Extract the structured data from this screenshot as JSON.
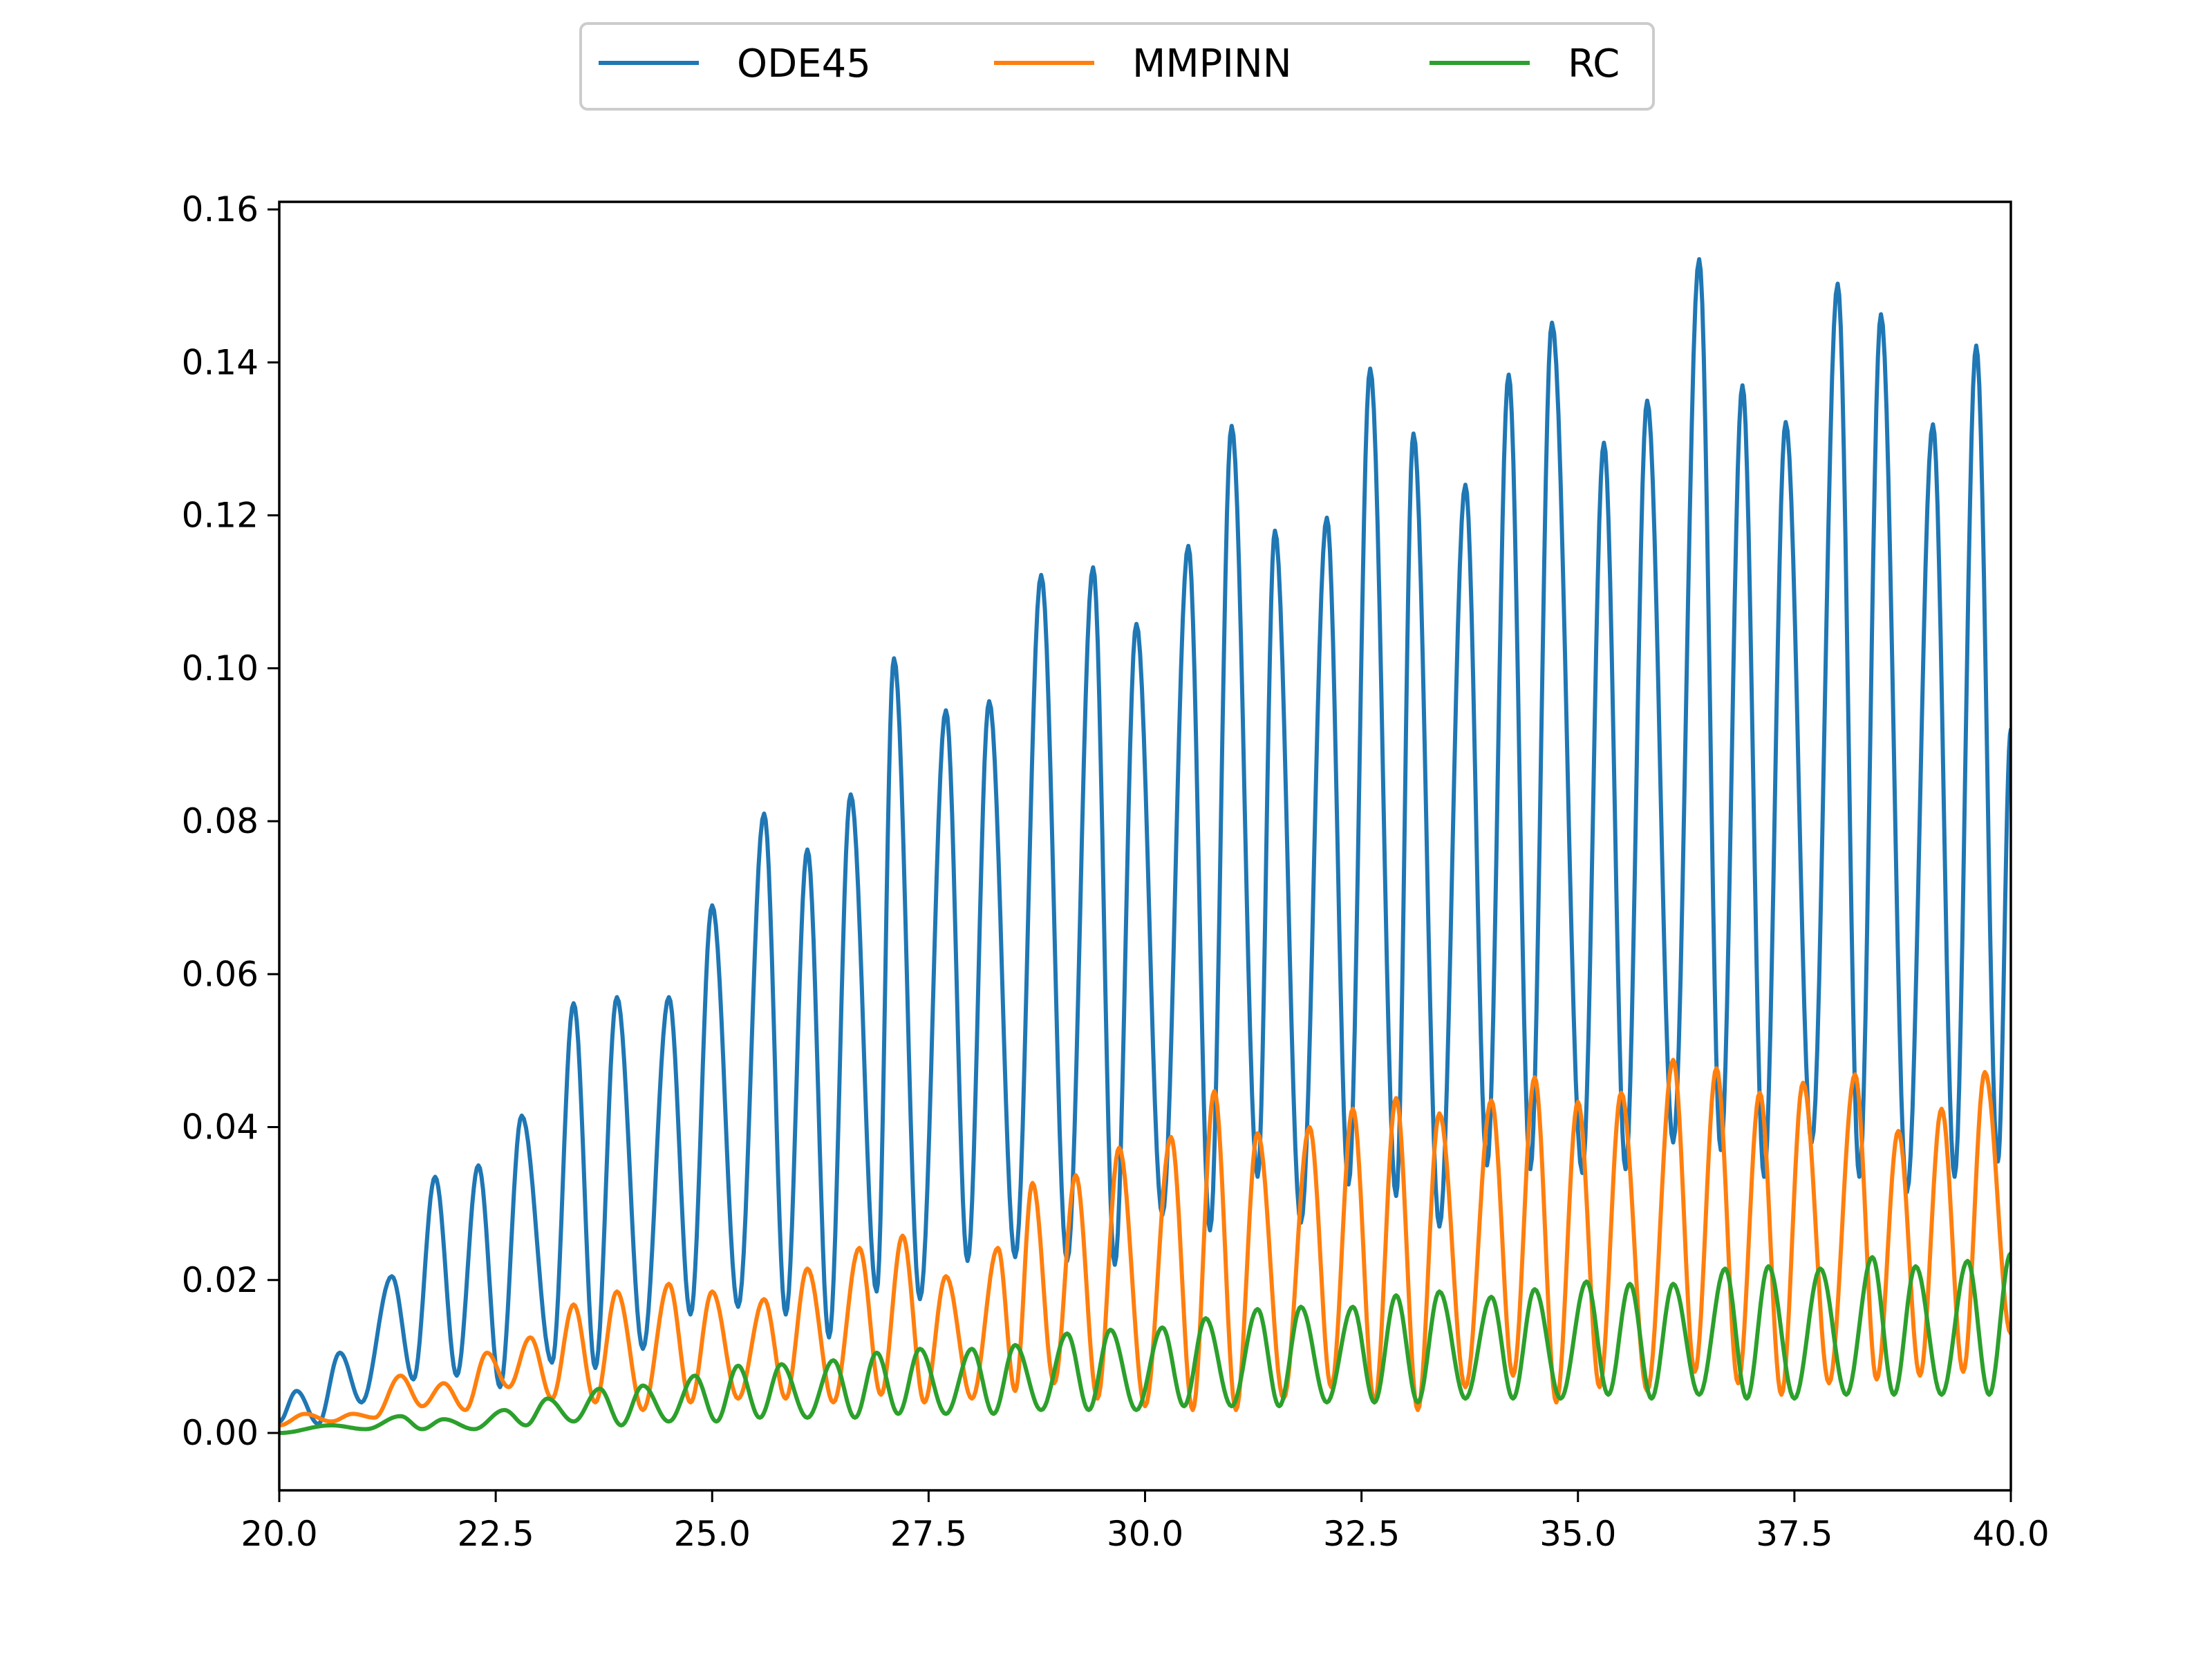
{
  "chart_data": {
    "type": "line",
    "title": "",
    "xlabel": "",
    "ylabel": "",
    "xlim": [
      20.0,
      40.0
    ],
    "ylim": [
      -0.0075,
      0.161
    ],
    "x_ticks": [
      "20.0",
      "22.5",
      "25.0",
      "27.5",
      "30.0",
      "32.5",
      "35.0",
      "37.5",
      "40.0"
    ],
    "x_tick_values": [
      20.0,
      22.5,
      25.0,
      27.5,
      30.0,
      32.5,
      35.0,
      37.5,
      40.0
    ],
    "y_ticks": [
      "0.00",
      "0.02",
      "0.04",
      "0.06",
      "0.08",
      "0.10",
      "0.12",
      "0.14",
      "0.16"
    ],
    "y_tick_values": [
      0.0,
      0.02,
      0.04,
      0.06,
      0.08,
      0.1,
      0.12,
      0.14,
      0.16
    ],
    "grid": false,
    "legend_position": "top-center",
    "series": [
      {
        "name": "ODE45",
        "color": "#1f77b4",
        "peaks": [
          [
            20.2,
            0.0055
          ],
          [
            20.7,
            0.0105
          ],
          [
            21.3,
            0.0205
          ],
          [
            21.8,
            0.0335
          ],
          [
            22.3,
            0.035
          ],
          [
            22.8,
            0.0415
          ],
          [
            23.4,
            0.0562
          ],
          [
            23.9,
            0.057
          ],
          [
            24.5,
            0.057
          ],
          [
            25.0,
            0.069
          ],
          [
            25.6,
            0.081
          ],
          [
            26.1,
            0.0763
          ],
          [
            26.6,
            0.0835
          ],
          [
            27.1,
            0.1013
          ],
          [
            27.7,
            0.0945
          ],
          [
            28.2,
            0.0957
          ],
          [
            28.8,
            0.1122
          ],
          [
            29.4,
            0.1132
          ],
          [
            29.9,
            0.1058
          ],
          [
            30.5,
            0.116
          ],
          [
            31.0,
            0.1317
          ],
          [
            31.5,
            0.118
          ],
          [
            32.1,
            0.1197
          ],
          [
            32.6,
            0.1392
          ],
          [
            33.1,
            0.1307
          ],
          [
            33.7,
            0.124
          ],
          [
            34.2,
            0.1384
          ],
          [
            34.7,
            0.1452
          ],
          [
            35.3,
            0.1295
          ],
          [
            35.8,
            0.135
          ],
          [
            36.4,
            0.1535
          ],
          [
            36.9,
            0.137
          ],
          [
            37.4,
            0.1322
          ],
          [
            38.0,
            0.1503
          ],
          [
            38.5,
            0.1463
          ],
          [
            39.1,
            0.1319
          ],
          [
            39.6,
            0.1422
          ]
        ],
        "troughs": [
          [
            20.0,
            0.0015
          ],
          [
            20.45,
            0.0012
          ],
          [
            20.95,
            0.004
          ],
          [
            21.55,
            0.007
          ],
          [
            22.05,
            0.0075
          ],
          [
            22.55,
            0.006
          ],
          [
            23.15,
            0.0092
          ],
          [
            23.65,
            0.0085
          ],
          [
            24.2,
            0.011
          ],
          [
            24.75,
            0.0155
          ],
          [
            25.3,
            0.0165
          ],
          [
            25.85,
            0.0155
          ],
          [
            26.35,
            0.0125
          ],
          [
            26.9,
            0.0185
          ],
          [
            27.4,
            0.0175
          ],
          [
            27.95,
            0.0225
          ],
          [
            28.5,
            0.023
          ],
          [
            29.1,
            0.0225
          ],
          [
            29.65,
            0.022
          ],
          [
            30.2,
            0.0285
          ],
          [
            30.75,
            0.0265
          ],
          [
            31.3,
            0.0335
          ],
          [
            31.8,
            0.0275
          ],
          [
            32.35,
            0.0325
          ],
          [
            32.9,
            0.031
          ],
          [
            33.4,
            0.027
          ],
          [
            33.95,
            0.035
          ],
          [
            34.45,
            0.0345
          ],
          [
            35.05,
            0.034
          ],
          [
            35.55,
            0.0345
          ],
          [
            36.1,
            0.038
          ],
          [
            36.65,
            0.037
          ],
          [
            37.15,
            0.0335
          ],
          [
            37.7,
            0.038
          ],
          [
            38.25,
            0.0335
          ],
          [
            38.8,
            0.0315
          ],
          [
            39.35,
            0.0335
          ],
          [
            39.85,
            0.0355
          ]
        ],
        "end": [
          40.0,
          0.092
        ]
      },
      {
        "name": "MMPINN",
        "color": "#ff7f0e",
        "peaks": [
          [
            20.3,
            0.0025
          ],
          [
            20.85,
            0.0025
          ],
          [
            21.4,
            0.0075
          ],
          [
            21.9,
            0.0065
          ],
          [
            22.4,
            0.0105
          ],
          [
            22.9,
            0.0125
          ],
          [
            23.4,
            0.0168
          ],
          [
            23.9,
            0.0185
          ],
          [
            24.5,
            0.0195
          ],
          [
            25.0,
            0.0185
          ],
          [
            25.6,
            0.0175
          ],
          [
            26.1,
            0.0215
          ],
          [
            26.7,
            0.0242
          ],
          [
            27.2,
            0.0258
          ],
          [
            27.7,
            0.0205
          ],
          [
            28.3,
            0.0242
          ],
          [
            28.7,
            0.0327
          ],
          [
            29.2,
            0.0337
          ],
          [
            29.7,
            0.0373
          ],
          [
            30.3,
            0.0387
          ],
          [
            30.8,
            0.0447
          ],
          [
            31.3,
            0.0392
          ],
          [
            31.9,
            0.04
          ],
          [
            32.4,
            0.0424
          ],
          [
            32.9,
            0.0438
          ],
          [
            33.4,
            0.0418
          ],
          [
            34.0,
            0.0435
          ],
          [
            34.5,
            0.0465
          ],
          [
            35.0,
            0.0433
          ],
          [
            35.5,
            0.0445
          ],
          [
            36.1,
            0.0488
          ],
          [
            36.6,
            0.0477
          ],
          [
            37.1,
            0.0445
          ],
          [
            37.6,
            0.0458
          ],
          [
            38.2,
            0.0469
          ],
          [
            38.7,
            0.0395
          ],
          [
            39.2,
            0.0424
          ],
          [
            39.7,
            0.0472
          ]
        ],
        "troughs": [
          [
            20.0,
            0.001
          ],
          [
            20.6,
            0.0015
          ],
          [
            21.1,
            0.002
          ],
          [
            21.65,
            0.0035
          ],
          [
            22.15,
            0.003
          ],
          [
            22.65,
            0.006
          ],
          [
            23.15,
            0.0045
          ],
          [
            23.65,
            0.004
          ],
          [
            24.2,
            0.003
          ],
          [
            24.75,
            0.004
          ],
          [
            25.3,
            0.0045
          ],
          [
            25.85,
            0.0045
          ],
          [
            26.4,
            0.004
          ],
          [
            26.95,
            0.005
          ],
          [
            27.45,
            0.004
          ],
          [
            28.0,
            0.0045
          ],
          [
            28.5,
            0.0055
          ],
          [
            28.95,
            0.0065
          ],
          [
            29.45,
            0.0045
          ],
          [
            30.0,
            0.0035
          ],
          [
            30.55,
            0.003
          ],
          [
            31.05,
            0.003
          ],
          [
            31.6,
            0.0045
          ],
          [
            32.15,
            0.006
          ],
          [
            32.65,
            0.004
          ],
          [
            33.15,
            0.003
          ],
          [
            33.7,
            0.006
          ],
          [
            34.25,
            0.0075
          ],
          [
            34.75,
            0.004
          ],
          [
            35.25,
            0.006
          ],
          [
            35.8,
            0.0055
          ],
          [
            36.35,
            0.008
          ],
          [
            36.85,
            0.0065
          ],
          [
            37.35,
            0.005
          ],
          [
            37.9,
            0.0065
          ],
          [
            38.45,
            0.007
          ],
          [
            38.95,
            0.0075
          ],
          [
            39.45,
            0.008
          ]
        ],
        "end": [
          40.0,
          0.013
        ]
      },
      {
        "name": "RC",
        "color": "#2ca02c",
        "peaks": [
          [
            20.6,
            0.001
          ],
          [
            21.4,
            0.0022
          ],
          [
            21.9,
            0.0018
          ],
          [
            22.6,
            0.003
          ],
          [
            23.1,
            0.0045
          ],
          [
            23.7,
            0.0058
          ],
          [
            24.2,
            0.0062
          ],
          [
            24.8,
            0.0075
          ],
          [
            25.3,
            0.0088
          ],
          [
            25.8,
            0.009
          ],
          [
            26.4,
            0.0095
          ],
          [
            26.9,
            0.0105
          ],
          [
            27.4,
            0.011
          ],
          [
            28.0,
            0.011
          ],
          [
            28.5,
            0.0115
          ],
          [
            29.1,
            0.013
          ],
          [
            29.6,
            0.0135
          ],
          [
            30.2,
            0.0138
          ],
          [
            30.7,
            0.015
          ],
          [
            31.3,
            0.0162
          ],
          [
            31.8,
            0.0165
          ],
          [
            32.4,
            0.0165
          ],
          [
            32.9,
            0.018
          ],
          [
            33.4,
            0.0185
          ],
          [
            34.0,
            0.0178
          ],
          [
            34.5,
            0.0188
          ],
          [
            35.1,
            0.0198
          ],
          [
            35.6,
            0.0195
          ],
          [
            36.1,
            0.0195
          ],
          [
            36.7,
            0.0215
          ],
          [
            37.2,
            0.0218
          ],
          [
            37.8,
            0.0215
          ],
          [
            38.4,
            0.023
          ],
          [
            38.9,
            0.0218
          ],
          [
            39.5,
            0.0225
          ]
        ],
        "troughs": [
          [
            20.0,
            0.0
          ],
          [
            21.0,
            0.0005
          ],
          [
            21.65,
            0.0005
          ],
          [
            22.25,
            0.0005
          ],
          [
            22.85,
            0.001
          ],
          [
            23.4,
            0.0015
          ],
          [
            23.95,
            0.001
          ],
          [
            24.5,
            0.0015
          ],
          [
            25.05,
            0.0015
          ],
          [
            25.55,
            0.002
          ],
          [
            26.1,
            0.002
          ],
          [
            26.65,
            0.002
          ],
          [
            27.15,
            0.0025
          ],
          [
            27.7,
            0.0025
          ],
          [
            28.25,
            0.0025
          ],
          [
            28.8,
            0.003
          ],
          [
            29.35,
            0.003
          ],
          [
            29.9,
            0.003
          ],
          [
            30.45,
            0.0035
          ],
          [
            31.0,
            0.0035
          ],
          [
            31.55,
            0.0035
          ],
          [
            32.1,
            0.004
          ],
          [
            32.65,
            0.004
          ],
          [
            33.15,
            0.004
          ],
          [
            33.7,
            0.0045
          ],
          [
            34.25,
            0.0045
          ],
          [
            34.8,
            0.0045
          ],
          [
            35.35,
            0.005
          ],
          [
            35.85,
            0.0045
          ],
          [
            36.4,
            0.005
          ],
          [
            36.95,
            0.0045
          ],
          [
            37.5,
            0.0045
          ],
          [
            38.1,
            0.005
          ],
          [
            38.65,
            0.005
          ],
          [
            39.2,
            0.005
          ],
          [
            39.75,
            0.005
          ]
        ],
        "end": [
          40.0,
          0.0235
        ]
      }
    ]
  }
}
